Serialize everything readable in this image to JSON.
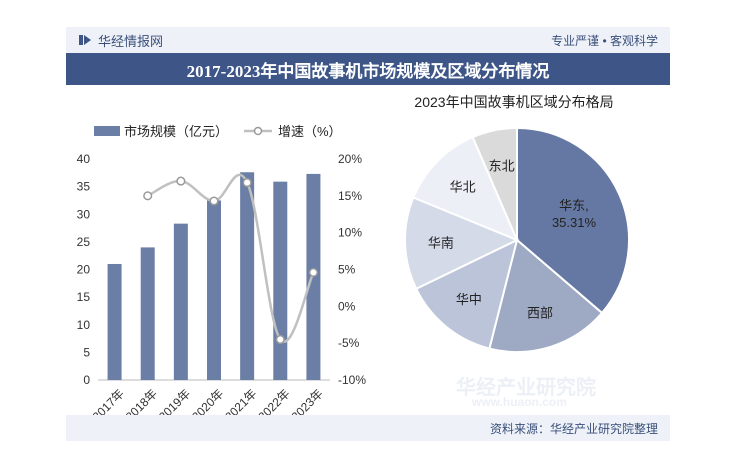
{
  "header": {
    "brand": "华经情报网",
    "slogan": "专业严谨 • 客观科学"
  },
  "title": "2017-2023年中国故事机市场规模及区域分布情况",
  "footer": {
    "source": "资料来源：华经产业研究院整理"
  },
  "watermark": {
    "name": "华经产业研究院",
    "url": "www.huaon.com"
  },
  "colors": {
    "bar": "#6a7ea6",
    "line": "#c0c0c0",
    "header_bg": "#3e5687",
    "band_bg": "#eef2f8"
  },
  "chart_data": [
    {
      "type": "bar",
      "categories": [
        "2017年",
        "2018年",
        "2019年",
        "2020年",
        "2021年",
        "2022年",
        "2023年"
      ],
      "series": [
        {
          "name": "市场规模（亿元）",
          "type": "bar",
          "axis": "left",
          "values": [
            21.0,
            24.0,
            28.3,
            32.5,
            37.6,
            35.9,
            37.3
          ]
        },
        {
          "name": "增速（%）",
          "type": "line",
          "axis": "right",
          "values": [
            null,
            15.0,
            17.0,
            14.3,
            16.8,
            -4.5,
            4.6
          ]
        }
      ],
      "y_left": {
        "ylim": [
          0,
          40
        ],
        "ticks": [
          "0",
          "5",
          "10",
          "15",
          "20",
          "25",
          "30",
          "35",
          "40"
        ]
      },
      "y_right": {
        "ylim": [
          -10,
          20
        ],
        "ticks": [
          "-10%",
          "-5%",
          "0%",
          "5%",
          "10%",
          "15%",
          "20%"
        ]
      },
      "legend": "top"
    },
    {
      "type": "pie",
      "title": "2023年中国故事机区域分布格局",
      "slices": [
        {
          "label": "华东",
          "value": 35.31,
          "value_label": "35.31%",
          "color": "#6578a3"
        },
        {
          "label": "西部",
          "value": 17.2,
          "color": "#9ea9c4"
        },
        {
          "label": "华中",
          "value": 13.5,
          "color": "#bcc4da"
        },
        {
          "label": "华南",
          "value": 13.0,
          "color": "#d4dae8"
        },
        {
          "label": "华北",
          "value": 12.0,
          "color": "#eceff5"
        },
        {
          "label": "东北",
          "value": 6.3,
          "color": "#dadada"
        }
      ]
    }
  ]
}
